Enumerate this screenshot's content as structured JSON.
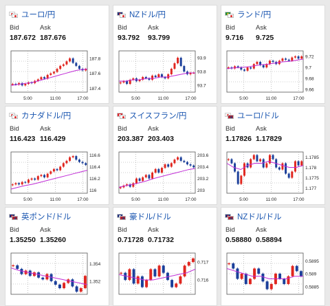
{
  "cards": [
    {
      "pair": "ユーロ/円",
      "bid_label": "Bid",
      "ask_label": "Ask",
      "bid": "187.672",
      "ask": "187.676",
      "flag": {
        "base": "#ffffff",
        "base_dot": "#d22",
        "quote": "#ffffff",
        "quote_dot": "#d22"
      },
      "chart_data": {
        "type": "candlestick",
        "x_ticks": [
          "5:00",
          "11:00",
          "17:00"
        ],
        "y_ticks": [
          "187.8",
          "187.6",
          "187.4"
        ],
        "ylim": [
          187.35,
          187.9
        ],
        "candles": [
          187.46,
          187.45,
          187.47,
          187.44,
          187.46,
          187.48,
          187.47,
          187.5,
          187.52,
          187.55,
          187.53,
          187.58,
          187.6,
          187.62,
          187.66,
          187.7,
          187.72,
          187.76,
          187.8,
          187.74,
          187.7,
          187.66,
          187.64,
          187.66
        ],
        "ma": [
          187.44,
          187.45,
          187.46,
          187.47,
          187.48,
          187.5,
          187.52,
          187.54,
          187.56,
          187.58,
          187.6,
          187.62,
          187.64,
          187.65,
          187.66
        ]
      }
    },
    {
      "pair": "NZドル/円",
      "bid_label": "Bid",
      "ask_label": "Ask",
      "bid": "93.792",
      "ask": "93.799",
      "flag": {
        "base": "#1f2f7a",
        "base_dot": "#d22",
        "quote": "#ffffff",
        "quote_dot": "#d22"
      },
      "chart_data": {
        "type": "candlestick",
        "x_ticks": [
          "5:00",
          "11:00",
          "17:00"
        ],
        "y_ticks": [
          "93.9",
          "93.8",
          "93.7"
        ],
        "ylim": [
          93.65,
          93.95
        ],
        "candles": [
          93.72,
          93.73,
          93.71,
          93.74,
          93.75,
          93.73,
          93.74,
          93.76,
          93.75,
          93.74,
          93.77,
          93.76,
          93.78,
          93.76,
          93.75,
          93.78,
          93.82,
          93.86,
          93.9,
          93.84,
          93.8,
          93.78,
          93.79,
          93.79
        ],
        "ma": [
          93.73,
          93.73,
          93.74,
          93.74,
          93.75,
          93.75,
          93.76,
          93.76,
          93.77,
          93.78,
          93.79,
          93.79
        ]
      }
    },
    {
      "pair": "ランド/円",
      "bid_label": "Bid",
      "ask_label": "Ask",
      "bid": "9.716",
      "ask": "9.725",
      "flag": {
        "base": "#1e8a3c",
        "base_dot": "#f2c200",
        "quote": "#ffffff",
        "quote_dot": "#d22"
      },
      "chart_data": {
        "type": "candlestick",
        "x_ticks": [
          "5:00",
          "11:00",
          "17:00"
        ],
        "y_ticks": [
          "9.72",
          "9.7",
          "9.68",
          "9.66"
        ],
        "ylim": [
          9.655,
          9.73
        ],
        "candles": [
          9.7,
          9.698,
          9.702,
          9.7,
          9.696,
          9.694,
          9.7,
          9.698,
          9.706,
          9.71,
          9.704,
          9.7,
          9.706,
          9.712,
          9.71,
          9.706,
          9.712,
          9.716,
          9.714,
          9.712,
          9.718,
          9.72,
          9.716,
          9.72
        ],
        "ma": [
          9.698,
          9.699,
          9.7,
          9.701,
          9.703,
          9.705,
          9.706,
          9.708,
          9.71,
          9.711,
          9.713,
          9.715
        ]
      }
    },
    {
      "pair": "カナダドル/円",
      "bid_label": "Bid",
      "ask_label": "Ask",
      "bid": "116.423",
      "ask": "116.429",
      "flag": {
        "base": "#ffffff",
        "base_dot": "#d22",
        "quote": "#ffffff",
        "quote_dot": "#d22"
      },
      "chart_data": {
        "type": "candlestick",
        "x_ticks": [
          "5:00",
          "11:00",
          "17:00"
        ],
        "y_ticks": [
          "116.6",
          "116.4",
          "116.2",
          "116"
        ],
        "ylim": [
          115.95,
          116.65
        ],
        "candles": [
          116.1,
          116.12,
          116.1,
          116.14,
          116.13,
          116.18,
          116.2,
          116.18,
          116.24,
          116.26,
          116.22,
          116.28,
          116.32,
          116.36,
          116.34,
          116.4,
          116.46,
          116.5,
          116.56,
          116.58,
          116.52,
          116.48,
          116.46,
          116.43
        ],
        "ma": [
          116.02,
          116.05,
          116.08,
          116.1,
          116.13,
          116.16,
          116.19,
          116.22,
          116.25,
          116.28,
          116.31,
          116.34
        ]
      }
    },
    {
      "pair": "スイスフラン/円",
      "bid_label": "Bid",
      "ask_label": "Ask",
      "bid": "203.387",
      "ask": "203.403",
      "flag": {
        "base": "#d8232a",
        "base_dot": "#ffffff",
        "quote": "#ffffff",
        "quote_dot": "#d22"
      },
      "chart_data": {
        "type": "candlestick",
        "x_ticks": [
          "5:00",
          "11:00",
          "17:00"
        ],
        "y_ticks": [
          "203.6",
          "203.4",
          "203.2",
          "203"
        ],
        "ylim": [
          202.95,
          203.65
        ],
        "candles": [
          203.05,
          203.08,
          203.1,
          203.06,
          203.12,
          203.2,
          203.16,
          203.22,
          203.26,
          203.2,
          203.3,
          203.36,
          203.3,
          203.38,
          203.44,
          203.4,
          203.46,
          203.52,
          203.56,
          203.5,
          203.48,
          203.44,
          203.42,
          203.39
        ],
        "ma": [
          203.05,
          203.08,
          203.1,
          203.13,
          203.16,
          203.2,
          203.23,
          203.26,
          203.29,
          203.32,
          203.35,
          203.37
        ]
      }
    },
    {
      "pair": "ユーロ/ドル",
      "bid_label": "Bid",
      "ask_label": "Ask",
      "bid": "1.17826",
      "ask": "1.17829",
      "flag": {
        "base": "#ffffff",
        "base_dot": "#d22",
        "quote": "#b22234",
        "quote_dot": "#3c3b6e"
      },
      "chart_data": {
        "type": "candlestick",
        "x_ticks": [
          "5:00",
          "11:00",
          "17:00"
        ],
        "y_ticks": [
          "1.1785",
          "1.178",
          "1.1775",
          "1.177"
        ],
        "ylim": [
          1.17675,
          1.17875
        ],
        "candles": [
          1.1784,
          1.1782,
          1.1778,
          1.1772,
          1.1776,
          1.1782,
          1.178,
          1.1784,
          1.1786,
          1.1783,
          1.1784,
          1.178,
          1.1782,
          1.1786,
          1.1784,
          1.178,
          1.1779,
          1.1782,
          1.1777,
          1.1775,
          1.1778,
          1.1783,
          1.1781,
          1.1783
        ],
        "ma": [
          1.1782,
          1.178,
          1.1779,
          1.1781,
          1.1782,
          1.1782,
          1.1783,
          1.1782,
          1.1781,
          1.178,
          1.178,
          1.1781
        ]
      }
    },
    {
      "pair": "英ポンド/ドル",
      "bid_label": "Bid",
      "ask_label": "Ask",
      "bid": "1.35250",
      "ask": "1.35260",
      "flag": {
        "base": "#1f2f7a",
        "base_dot": "#d22",
        "quote": "#b22234",
        "quote_dot": "#3c3b6e"
      },
      "chart_data": {
        "type": "candlestick",
        "x_ticks": [],
        "y_ticks": [
          "1.354",
          "1.352"
        ],
        "ylim": [
          1.3505,
          1.3552
        ],
        "candles": [
          1.3538,
          1.3534,
          1.3528,
          1.3532,
          1.3526,
          1.353,
          1.3524,
          1.3522,
          1.3528,
          1.352,
          1.3516,
          1.3512,
          1.3518,
          1.3522,
          1.3514,
          1.3508,
          1.3512,
          1.3526
        ],
        "ma": [
          1.3535,
          1.3532,
          1.353,
          1.3528,
          1.3526,
          1.3524,
          1.3522,
          1.352,
          1.3518,
          1.3516
        ]
      }
    },
    {
      "pair": "豪ドル/ドル",
      "bid_label": "Bid",
      "ask_label": "Ask",
      "bid": "0.71728",
      "ask": "0.71732",
      "flag": {
        "base": "#1f2f7a",
        "base_dot": "#ffffff",
        "quote": "#b22234",
        "quote_dot": "#3c3b6e"
      },
      "chart_data": {
        "type": "candlestick",
        "x_ticks": [],
        "y_ticks": [
          "0.717",
          "0.716"
        ],
        "ylim": [
          0.7152,
          0.7175
        ],
        "candles": [
          0.7164,
          0.716,
          0.7166,
          0.7158,
          0.7162,
          0.7156,
          0.716,
          0.7166,
          0.7162,
          0.7168,
          0.7164,
          0.716,
          0.7156,
          0.7158,
          0.7162,
          0.7168,
          0.717,
          0.7172
        ],
        "ma": [
          0.7163,
          0.7162,
          0.7161,
          0.716,
          0.716,
          0.7161,
          0.7162,
          0.7163,
          0.7164,
          0.7166
        ]
      }
    },
    {
      "pair": "NZドル/ドル",
      "bid_label": "Bid",
      "ask_label": "Ask",
      "bid": "0.58880",
      "ask": "0.58894",
      "flag": {
        "base": "#1f2f7a",
        "base_dot": "#d22",
        "quote": "#b22234",
        "quote_dot": "#3c3b6e"
      },
      "chart_data": {
        "type": "candlestick",
        "x_ticks": [],
        "y_ticks": [
          "0.5895",
          "0.589",
          "0.5885"
        ],
        "ylim": [
          0.5882,
          0.5898
        ],
        "candles": [
          0.5894,
          0.5892,
          0.5888,
          0.589,
          0.5886,
          0.5888,
          0.5892,
          0.589,
          0.5887,
          0.5884,
          0.5886,
          0.589,
          0.5888,
          0.5886,
          0.5889,
          0.5893,
          0.5891,
          0.5889
        ],
        "ma": [
          0.5892,
          0.5891,
          0.589,
          0.5889,
          0.5889,
          0.5888,
          0.5888,
          0.5888,
          0.5889,
          0.5889
        ]
      }
    }
  ],
  "colors": {
    "up": "#e0261f",
    "down": "#1b3f9a",
    "ma": "#c02bd6",
    "grid": "#9a9a9a",
    "pair_text": "#1a56b0"
  }
}
